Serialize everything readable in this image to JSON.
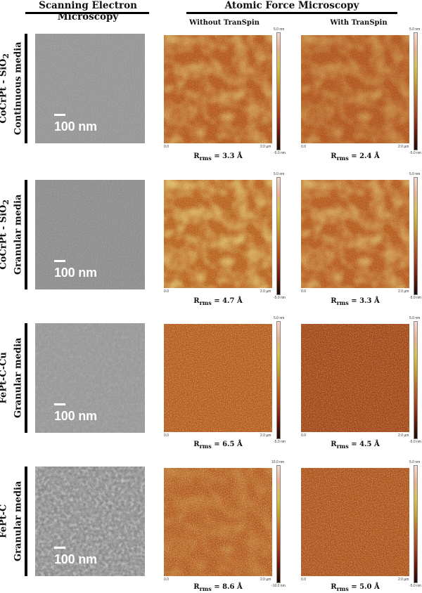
{
  "headers": {
    "sem": "Scanning Electron Microscopy",
    "afm": "Atomic Force Microscopy",
    "without": "Without TranSpin",
    "with": "With TranSpin"
  },
  "scale_label": "100 nm",
  "axis": {
    "start": "0.0",
    "end": "2.0 µm"
  },
  "rms_prefix": "R",
  "rms_subscript": "rms",
  "rows": [
    {
      "label_line1": "CoCrPt - SiO",
      "label_sub": "2",
      "label_line2": "Continuous media",
      "cbar_top": "5.0 nm",
      "cbar_bottom": "-5.0 nm",
      "cbar_top_with": "5.0 nm",
      "cbar_bottom_with": "-5.0 nm",
      "rms_without": "= 3.3 Å",
      "rms_with": "= 2.4 Å"
    },
    {
      "label_line1": "CoCrPt - SiO",
      "label_sub": "2",
      "label_line2": "Granular media",
      "cbar_top": "5.0 nm",
      "cbar_bottom": "-5.0 nm",
      "cbar_top_with": "5.0 nm",
      "cbar_bottom_with": "-5.0 nm",
      "rms_without": "= 4.7 Å",
      "rms_with": "= 3.3 Å"
    },
    {
      "label_line1": "FePt-C-Cu",
      "label_sub": "",
      "label_line2": "Granular media",
      "cbar_top": "5.0 nm",
      "cbar_bottom": "-5.0 nm",
      "cbar_top_with": "5.0 nm",
      "cbar_bottom_with": "-5.0 nm",
      "rms_without": "= 6.5 Å",
      "rms_with": "= 4.5 Å"
    },
    {
      "label_line1": "FePt-C",
      "label_sub": "",
      "label_line2": "Granular media",
      "cbar_top": "10.0 nm",
      "cbar_bottom": "-10.0 nm",
      "cbar_top_with": "5.0 nm",
      "cbar_bottom_with": "-5.0 nm",
      "rms_without": "= 8.6 Å",
      "rms_with": "= 5.0 Å"
    }
  ]
}
